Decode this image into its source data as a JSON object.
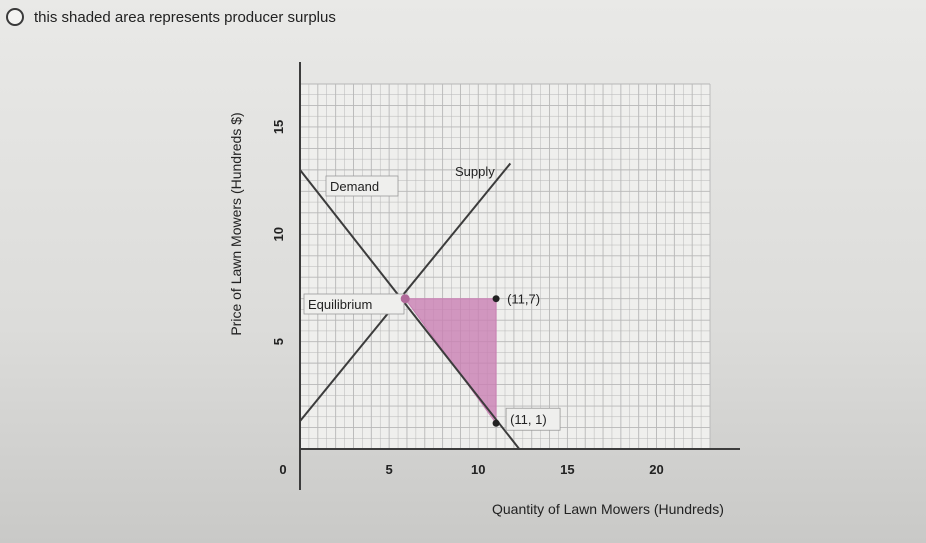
{
  "question_option": {
    "text": "this shaded area represents producer surplus"
  },
  "colors": {
    "shade": "#c97fb3",
    "line": "#3c3c3c",
    "grid": "#b7b7b7",
    "point": "#222222",
    "equilibrium_point": "#b06a9a"
  },
  "chart_data": {
    "type": "line",
    "xlabel": "Quantity of Lawn Mowers (Hundreds)",
    "ylabel": "Price of Lawn Mowers (Hundreds $)",
    "xlim": [
      0,
      23
    ],
    "ylim": [
      0,
      17
    ],
    "x_ticks": [
      0,
      5,
      10,
      15,
      20
    ],
    "y_ticks": [
      5,
      10,
      15
    ],
    "grid": true,
    "series": [
      {
        "name": "Demand",
        "x": [
          0,
          12.3
        ],
        "y": [
          13,
          0
        ]
      },
      {
        "name": "Supply",
        "x": [
          0,
          11.8
        ],
        "y": [
          1.3,
          13.3
        ]
      }
    ],
    "shaded_region": [
      [
        5.9,
        7
      ],
      [
        11,
        7
      ],
      [
        11,
        1.2
      ]
    ],
    "points": [
      {
        "label": "Equilibrium",
        "x": 5.9,
        "y": 7
      },
      {
        "label": "(11,7)",
        "x": 11,
        "y": 7
      },
      {
        "label": "(11, 1)",
        "x": 11,
        "y": 1.2
      }
    ],
    "zero_label": "0"
  }
}
